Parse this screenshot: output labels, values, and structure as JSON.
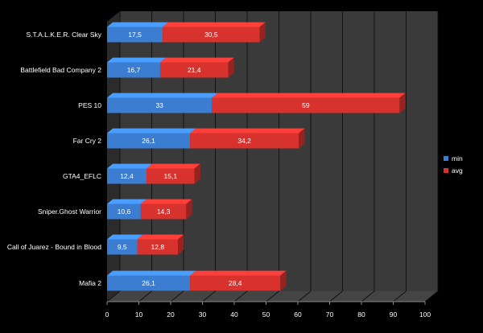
{
  "chart_data": {
    "type": "bar",
    "orientation": "horizontal",
    "style": "3d-stacked",
    "categories": [
      "S.T.A.L.K.E.R. Clear Sky",
      "Battlefield Bad Company 2",
      "PES 10",
      "Far Cry 2",
      "GTA4_EFLC",
      "Sniper.Ghost Warrior",
      "Call of Juarez - Bound in Blood",
      "Mafia 2"
    ],
    "series": [
      {
        "name": "min",
        "color": "#3b7ed1",
        "values": [
          17.5,
          16.7,
          33,
          26.1,
          12.4,
          10.6,
          9.5,
          26.1
        ],
        "labels": [
          "17,5",
          "16,7",
          "33",
          "26,1",
          "12,4",
          "10,6",
          "9,5",
          "26,1"
        ]
      },
      {
        "name": "avg",
        "color": "#d8322e",
        "values": [
          30.5,
          21.4,
          59,
          34.2,
          15.1,
          14.3,
          12.8,
          28.4
        ],
        "labels": [
          "30,5",
          "21,4",
          "59",
          "34,2",
          "15,1",
          "14,3",
          "12,8",
          "28,4"
        ]
      }
    ],
    "xlim": [
      0,
      100
    ],
    "x_ticks": [
      "0",
      "10",
      "20",
      "30",
      "40",
      "50",
      "60",
      "70",
      "80",
      "90",
      "100"
    ],
    "grid": true,
    "legend_position": "right",
    "title": "",
    "xlabel": "",
    "ylabel": ""
  }
}
